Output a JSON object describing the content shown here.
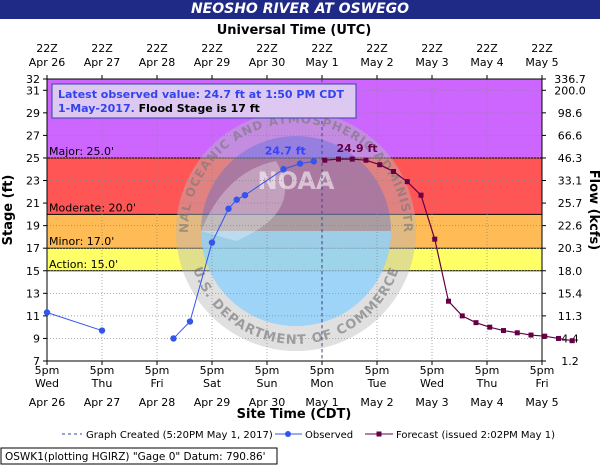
{
  "chart_data": {
    "type": "line",
    "title": "NEOSHO RIVER AT OSWEGO",
    "top_axis": {
      "label": "Universal Time (UTC)",
      "ticks": [
        {
          "hour": "22Z",
          "date": "Apr 26"
        },
        {
          "hour": "22Z",
          "date": "Apr 27"
        },
        {
          "hour": "22Z",
          "date": "Apr 28"
        },
        {
          "hour": "22Z",
          "date": "Apr 29"
        },
        {
          "hour": "22Z",
          "date": "Apr 30"
        },
        {
          "hour": "22Z",
          "date": "May 1"
        },
        {
          "hour": "22Z",
          "date": "May 2"
        },
        {
          "hour": "22Z",
          "date": "May 3"
        },
        {
          "hour": "22Z",
          "date": "May 4"
        },
        {
          "hour": "22Z",
          "date": "May 5"
        }
      ]
    },
    "bottom_axis": {
      "label": "Site Time (CDT)",
      "ticks": [
        {
          "time": "5pm",
          "day": "Wed",
          "date": "Apr 26"
        },
        {
          "time": "5pm",
          "day": "Thu",
          "date": "Apr 27"
        },
        {
          "time": "5pm",
          "day": "Fri",
          "date": "Apr 28"
        },
        {
          "time": "5pm",
          "day": "Sat",
          "date": "Apr 29"
        },
        {
          "time": "5pm",
          "day": "Sun",
          "date": "Apr 30"
        },
        {
          "time": "5pm",
          "day": "Mon",
          "date": "May 1"
        },
        {
          "time": "5pm",
          "day": "Tue",
          "date": "May 2"
        },
        {
          "time": "5pm",
          "day": "Wed",
          "date": "May 3"
        },
        {
          "time": "5pm",
          "day": "Thu",
          "date": "May 4"
        },
        {
          "time": "5pm",
          "day": "Fri",
          "date": "May 5"
        }
      ]
    },
    "ylabel": "Stage (ft)",
    "ylim": [
      7,
      32
    ],
    "yticks": [
      7,
      9,
      11,
      13,
      15,
      17,
      19,
      21,
      23,
      25,
      27,
      29,
      31,
      32
    ],
    "y2label": "Flow (kcfs)",
    "y2ticks": [
      {
        "stage": 7,
        "label": "1.2"
      },
      {
        "stage": 9,
        "label": "4.4"
      },
      {
        "stage": 11,
        "label": "11.3"
      },
      {
        "stage": 13,
        "label": "15.4"
      },
      {
        "stage": 15,
        "label": "18.0"
      },
      {
        "stage": 17,
        "label": "20.3"
      },
      {
        "stage": 19,
        "label": "22.6"
      },
      {
        "stage": 21,
        "label": "25.7"
      },
      {
        "stage": 23,
        "label": "33.1"
      },
      {
        "stage": 25,
        "label": "46.3"
      },
      {
        "stage": 27,
        "label": "66.6"
      },
      {
        "stage": 29,
        "label": "98.6"
      },
      {
        "stage": 31,
        "label": "200.0"
      },
      {
        "stage": 32,
        "label": "336.7"
      }
    ],
    "flood_bands": [
      {
        "label": "Action: 15.0'",
        "from": 15,
        "to": 17,
        "color": "#ffff66"
      },
      {
        "label": "Minor: 17.0'",
        "from": 17,
        "to": 20,
        "color": "#ffbb55"
      },
      {
        "label": "Moderate: 20.0'",
        "from": 20,
        "to": 25,
        "color": "#ff5555"
      },
      {
        "label": "Major: 25.0'",
        "from": 25,
        "to": 32,
        "color": "#cc66ff"
      }
    ],
    "info_box": {
      "line1": "Latest observed value: 24.7 ft at 1:50 PM CDT",
      "line2_prefix": "1-May-2017.",
      "line2_suffix": "Flood Stage is 17 ft"
    },
    "observed_peak_label": "24.7 ft",
    "forecast_peak_label": "24.9 ft",
    "series": [
      {
        "name": "Observed",
        "color": "#3355ee",
        "points": [
          [
            0.0,
            11.3
          ],
          [
            0.0,
            11.3
          ],
          [
            1.0,
            9.7
          ],
          [
            2.3,
            9.0
          ],
          [
            2.6,
            10.5
          ],
          [
            3.0,
            17.5
          ],
          [
            3.3,
            20.5
          ],
          [
            3.45,
            21.3
          ],
          [
            3.6,
            21.7
          ],
          [
            4.3,
            24.0
          ],
          [
            4.6,
            24.5
          ],
          [
            4.85,
            24.7
          ]
        ]
      },
      {
        "name": "Forecast (issued 2:02PM May 1)",
        "color": "#660044",
        "points": [
          [
            5.05,
            24.8
          ],
          [
            5.3,
            24.9
          ],
          [
            5.55,
            24.9
          ],
          [
            5.8,
            24.8
          ],
          [
            6.05,
            24.4
          ],
          [
            6.3,
            23.8
          ],
          [
            6.55,
            22.9
          ],
          [
            6.8,
            21.7
          ],
          [
            7.05,
            17.8
          ],
          [
            7.3,
            12.3
          ],
          [
            7.55,
            11.0
          ],
          [
            7.8,
            10.4
          ],
          [
            8.05,
            10.0
          ],
          [
            8.3,
            9.7
          ],
          [
            8.55,
            9.5
          ],
          [
            8.8,
            9.3
          ],
          [
            9.05,
            9.2
          ],
          [
            9.3,
            9.0
          ],
          [
            9.55,
            8.8
          ]
        ]
      }
    ],
    "created_line_x": 5.0,
    "legend": {
      "created": "Graph Created (5:20PM May 1, 2017)",
      "observed": "Observed",
      "forecast": "Forecast (issued 2:02PM May 1)"
    },
    "footer": "OSWK1(plotting HGIRZ) \"Gage 0\" Datum: 790.86'",
    "watermark": {
      "seal_text": "NATIONAL OCEANIC AND ATMOSPHERIC ADMINISTRATION",
      "seal_center": "NOAA",
      "bottom_text": "U.S. DEPARTMENT OF COMMERCE"
    }
  }
}
